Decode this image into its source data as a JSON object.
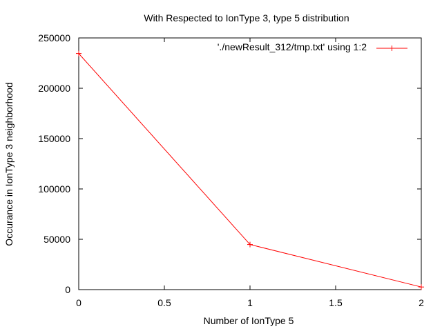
{
  "chart_data": {
    "type": "line",
    "title": "With Respected to IonType 3, type 5 distribution",
    "xlabel": "Number of IonType 5",
    "ylabel": "Occurance in IonType 3 neighborhood",
    "xlim": [
      0,
      2
    ],
    "ylim": [
      0,
      250000
    ],
    "xticks": [
      0,
      0.5,
      1,
      1.5,
      2
    ],
    "xtick_labels": [
      "0",
      "0.5",
      "1",
      "1.5",
      "2"
    ],
    "yticks": [
      0,
      50000,
      100000,
      150000,
      200000,
      250000
    ],
    "ytick_labels": [
      "0",
      "50000",
      "100000",
      "150000",
      "200000",
      "250000"
    ],
    "grid": false,
    "legend_position": "top-right",
    "series": [
      {
        "name": "'./newResult_312/tmp.txt' using 1:2",
        "color": "#ff0000",
        "marker": "plus",
        "x": [
          0,
          1,
          2
        ],
        "y": [
          234500,
          44800,
          2600
        ]
      }
    ]
  }
}
